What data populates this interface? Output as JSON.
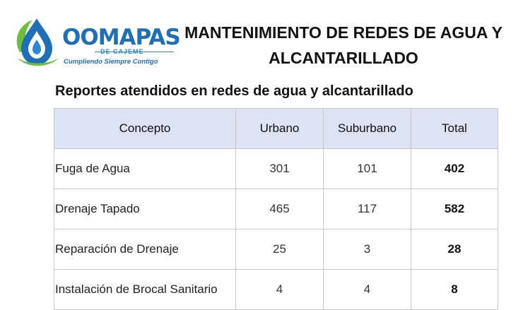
{
  "header": {
    "brand": "OOMAPAS",
    "brand_sub": "DE CAJEME",
    "tagline": "Cumpliendo Siempre Contigo",
    "title_line1": "MANTENIMIENTO DE REDES DE AGUA Y",
    "title_line2": "ALCANTARILLADO"
  },
  "subtitle": "Reportes atendidos en redes de agua y alcantarillado",
  "table": {
    "columns": [
      "Concepto",
      "Urbano",
      "Suburbano",
      "Total"
    ],
    "rows": [
      {
        "concepto": "Fuga de Agua",
        "urbano": "301",
        "suburbano": "101",
        "total": "402"
      },
      {
        "concepto": "Drenaje Tapado",
        "urbano": "465",
        "suburbano": "117",
        "total": "582"
      },
      {
        "concepto": "Reparación de Drenaje",
        "urbano": "25",
        "suburbano": "3",
        "total": "28"
      },
      {
        "concepto": "Instalación de Brocal Sanitario",
        "urbano": "4",
        "suburbano": "4",
        "total": "8"
      }
    ]
  },
  "colors": {
    "brand_blue": "#1f6fb8",
    "brand_green": "#6cbf3a",
    "header_fill": "#dde3f3",
    "border": "#c8c8c8"
  }
}
